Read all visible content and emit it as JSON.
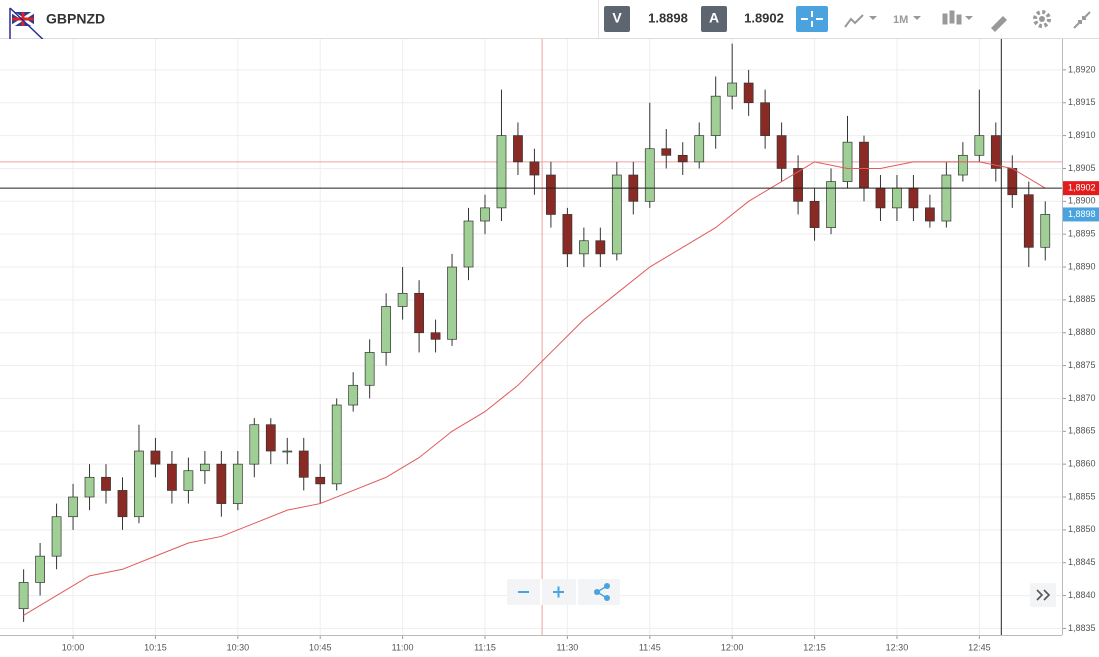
{
  "header": {
    "symbol": "GBPNZD",
    "sell_label": "V",
    "sell": "1.8898",
    "buy_label": "A",
    "buy": "1.8902",
    "timeframe": "1M"
  },
  "chart_data": {
    "type": "candlestick",
    "x": [
      591,
      594,
      597,
      600,
      603,
      606,
      609,
      612,
      615,
      618,
      621,
      624,
      627,
      630,
      633,
      636,
      639,
      642,
      645,
      648,
      651,
      654,
      657,
      660,
      663,
      666,
      669,
      672,
      675,
      678,
      681,
      684,
      687,
      690,
      693,
      696,
      699,
      702,
      705,
      708,
      711,
      714,
      717,
      720,
      723,
      726,
      729,
      732,
      735,
      738,
      741,
      744,
      747,
      750,
      753,
      756,
      759,
      762,
      765,
      768,
      771,
      774,
      777
    ],
    "open": [
      1.8838,
      1.8842,
      1.8846,
      1.8852,
      1.8855,
      1.8858,
      1.8856,
      1.8852,
      1.8862,
      1.886,
      1.8856,
      1.8859,
      1.886,
      1.8854,
      1.886,
      1.8866,
      1.8862,
      1.8862,
      1.8858,
      1.8857,
      1.8869,
      1.8872,
      1.8877,
      1.8884,
      1.8886,
      1.888,
      1.8879,
      1.889,
      1.8897,
      1.8899,
      1.891,
      1.8906,
      1.8904,
      1.8898,
      1.8892,
      1.8894,
      1.8892,
      1.8904,
      1.89,
      1.8908,
      1.8907,
      1.8906,
      1.891,
      1.8916,
      1.8918,
      1.8915,
      1.891,
      1.8905,
      1.89,
      1.8896,
      1.8903,
      1.8909,
      1.8902,
      1.8899,
      1.8902,
      1.8899,
      1.8897,
      1.8904,
      1.8907,
      1.891,
      1.8905,
      1.8901,
      1.8893
    ],
    "high": [
      1.8844,
      1.8848,
      1.8854,
      1.8857,
      1.886,
      1.886,
      1.8858,
      1.8866,
      1.8864,
      1.8862,
      1.8861,
      1.8862,
      1.8862,
      1.8862,
      1.8867,
      1.8867,
      1.8864,
      1.8864,
      1.886,
      1.887,
      1.8874,
      1.8879,
      1.8886,
      1.889,
      1.8888,
      1.8882,
      1.8892,
      1.8899,
      1.8901,
      1.8917,
      1.8912,
      1.8908,
      1.8906,
      1.8899,
      1.8896,
      1.8896,
      1.8906,
      1.8906,
      1.8915,
      1.8911,
      1.8909,
      1.8912,
      1.8919,
      1.8924,
      1.892,
      1.8917,
      1.8912,
      1.8907,
      1.8902,
      1.8905,
      1.8913,
      1.891,
      1.8904,
      1.8904,
      1.8904,
      1.8901,
      1.8906,
      1.8909,
      1.8917,
      1.8912,
      1.8907,
      1.8903,
      1.89
    ],
    "low": [
      1.8836,
      1.884,
      1.8844,
      1.885,
      1.8853,
      1.8854,
      1.885,
      1.8851,
      1.8858,
      1.8854,
      1.8854,
      1.8857,
      1.8852,
      1.8853,
      1.8858,
      1.886,
      1.886,
      1.8856,
      1.8854,
      1.8856,
      1.8868,
      1.887,
      1.8875,
      1.8882,
      1.8877,
      1.8877,
      1.8878,
      1.8888,
      1.8895,
      1.8897,
      1.8904,
      1.8901,
      1.8896,
      1.889,
      1.889,
      1.889,
      1.8891,
      1.8898,
      1.8899,
      1.8905,
      1.8904,
      1.8905,
      1.8908,
      1.8914,
      1.8913,
      1.8908,
      1.8903,
      1.8898,
      1.8894,
      1.8895,
      1.8902,
      1.89,
      1.8897,
      1.8897,
      1.8897,
      1.8896,
      1.8896,
      1.8903,
      1.8906,
      1.8903,
      1.8899,
      1.889,
      1.8891
    ],
    "close": [
      1.8842,
      1.8846,
      1.8852,
      1.8855,
      1.8858,
      1.8856,
      1.8852,
      1.8862,
      1.886,
      1.8856,
      1.8859,
      1.886,
      1.8854,
      1.886,
      1.8866,
      1.8862,
      1.8862,
      1.8858,
      1.8857,
      1.8869,
      1.8872,
      1.8877,
      1.8884,
      1.8886,
      1.888,
      1.8879,
      1.889,
      1.8897,
      1.8899,
      1.891,
      1.8906,
      1.8904,
      1.8898,
      1.8892,
      1.8894,
      1.8892,
      1.8904,
      1.89,
      1.8908,
      1.8907,
      1.8906,
      1.891,
      1.8916,
      1.8918,
      1.8915,
      1.891,
      1.8905,
      1.89,
      1.8896,
      1.8903,
      1.8909,
      1.8902,
      1.8899,
      1.8902,
      1.8899,
      1.8897,
      1.8904,
      1.8907,
      1.891,
      1.8905,
      1.8901,
      1.8893,
      1.8898
    ],
    "up_color": "#9fcf95",
    "down_color": "#8a2a25",
    "moving_average": {
      "color": "#e05a5a",
      "x": [
        591,
        597,
        603,
        609,
        615,
        621,
        627,
        633,
        639,
        645,
        651,
        657,
        663,
        669,
        675,
        681,
        687,
        693,
        699,
        705,
        711,
        717,
        723,
        729,
        735,
        741,
        747,
        753,
        759,
        765,
        771,
        777
      ],
      "values": [
        1.8837,
        1.884,
        1.8843,
        1.8844,
        1.8846,
        1.8848,
        1.8849,
        1.8851,
        1.8853,
        1.8854,
        1.8856,
        1.8858,
        1.8861,
        1.8865,
        1.8868,
        1.8872,
        1.8877,
        1.8882,
        1.8886,
        1.889,
        1.8893,
        1.8896,
        1.89,
        1.8903,
        1.8906,
        1.8905,
        1.8905,
        1.8906,
        1.8906,
        1.8906,
        1.8905,
        1.8902
      ]
    },
    "price_lines": [
      {
        "value": 1.8902,
        "label": "1,8902",
        "color": "#e21b1b",
        "line": "#222"
      },
      {
        "value": 1.8898,
        "label": "1,8898",
        "color": "#4aa3df"
      }
    ],
    "crosshair": {
      "x": 685.4,
      "y": 1.8906,
      "color": "#f0a0a0"
    },
    "cursor_x": 769,
    "xlim": [
      586.7,
      780.05
    ],
    "ylim": [
      1.8834,
      1.89247
    ],
    "xticks": [
      {
        "value": 600,
        "label": "10:00"
      },
      {
        "value": 615,
        "label": "10:15"
      },
      {
        "value": 630,
        "label": "10:30"
      },
      {
        "value": 645,
        "label": "10:45"
      },
      {
        "value": 660,
        "label": "11:00"
      },
      {
        "value": 675,
        "label": "11:15"
      },
      {
        "value": 690,
        "label": "11:30"
      },
      {
        "value": 705,
        "label": "11:45"
      },
      {
        "value": 720,
        "label": "12:00"
      },
      {
        "value": 735,
        "label": "12:15"
      },
      {
        "value": 750,
        "label": "12:30"
      },
      {
        "value": 765,
        "label": "12:45"
      }
    ],
    "yticks": [
      {
        "value": 1.8835,
        "label": "1,8835"
      },
      {
        "value": 1.884,
        "label": "1,8840"
      },
      {
        "value": 1.8845,
        "label": "1,8845"
      },
      {
        "value": 1.885,
        "label": "1,8850"
      },
      {
        "value": 1.8855,
        "label": "1,8855"
      },
      {
        "value": 1.886,
        "label": "1,8860"
      },
      {
        "value": 1.8865,
        "label": "1,8865"
      },
      {
        "value": 1.887,
        "label": "1,8870"
      },
      {
        "value": 1.8875,
        "label": "1,8875"
      },
      {
        "value": 1.888,
        "label": "1,8880"
      },
      {
        "value": 1.8885,
        "label": "1,8885"
      },
      {
        "value": 1.889,
        "label": "1,8890"
      },
      {
        "value": 1.8895,
        "label": "1,8895"
      },
      {
        "value": 1.89,
        "label": "1,8900"
      },
      {
        "value": 1.8905,
        "label": "1,8905"
      },
      {
        "value": 1.891,
        "label": "1,8910"
      },
      {
        "value": 1.8915,
        "label": "1,8915"
      },
      {
        "value": 1.892,
        "label": "1,8920"
      }
    ],
    "grid": true
  }
}
